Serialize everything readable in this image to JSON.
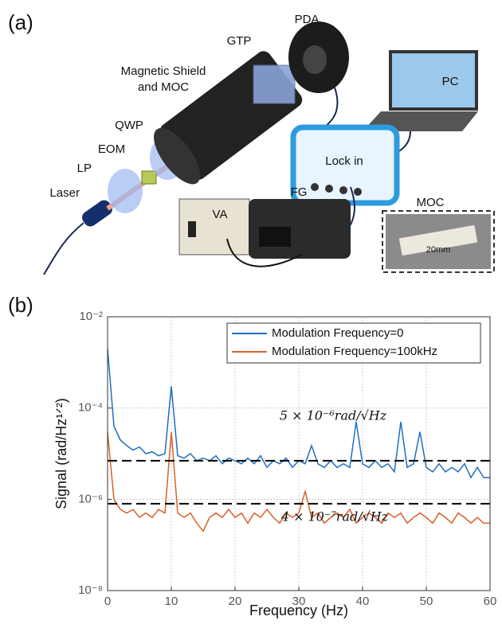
{
  "panels": {
    "a": "(a)",
    "b": "(b)"
  },
  "diagram": {
    "pda": "PDA",
    "gtp": "GTP",
    "shield": [
      "Magnetic Shield",
      "and MOC"
    ],
    "pc": "PC",
    "qwp": "QWP",
    "eom": "EOM",
    "lp": "LP",
    "laser": "Laser",
    "lockin": "Lock in",
    "moc": "MOC",
    "fg": "FG",
    "va": "VA",
    "scale": "20mm"
  },
  "chart_data": {
    "type": "line",
    "xlabel": "Frequency (Hz)",
    "ylabel": "Signal (rad/Hz¹ᐟ²)",
    "x": [
      0,
      1,
      2,
      3,
      4,
      5,
      6,
      7,
      8,
      9,
      10,
      11,
      12,
      13,
      14,
      15,
      16,
      17,
      18,
      19,
      20,
      21,
      22,
      23,
      24,
      25,
      26,
      27,
      28,
      29,
      30,
      31,
      32,
      33,
      34,
      35,
      36,
      37,
      38,
      39,
      40,
      41,
      42,
      43,
      44,
      45,
      46,
      47,
      48,
      49,
      50,
      51,
      52,
      53,
      54,
      55,
      56,
      57,
      58,
      59,
      60
    ],
    "series": [
      {
        "name": "Modulation Frequency=0",
        "color": "#1f6fbf",
        "values": [
          0.002,
          4e-05,
          2e-05,
          1.5e-05,
          1.2e-05,
          1.4e-05,
          1e-05,
          1.1e-05,
          9e-06,
          1e-05,
          0.0003,
          9e-06,
          8e-06,
          1e-05,
          7e-06,
          8e-06,
          7e-06,
          9e-06,
          6e-06,
          8e-06,
          7e-06,
          6e-06,
          8e-06,
          6e-06,
          9e-06,
          5e-06,
          7e-06,
          6e-06,
          8e-06,
          5e-06,
          7e-06,
          6e-06,
          1.5e-05,
          6e-06,
          5e-06,
          7e-06,
          5e-06,
          6e-06,
          5e-06,
          5e-05,
          6e-06,
          5e-06,
          7e-06,
          5e-06,
          6e-06,
          4e-06,
          5e-05,
          5e-06,
          6e-06,
          3e-05,
          5e-06,
          4e-06,
          6e-06,
          4e-06,
          5e-06,
          4e-06,
          6e-06,
          3e-06,
          5e-06,
          3e-06,
          3e-06
        ]
      },
      {
        "name": "Modulation Frequency=100kHz",
        "color": "#d9622b",
        "values": [
          3e-05,
          1e-06,
          6e-07,
          5e-07,
          6e-07,
          4e-07,
          5e-07,
          4e-07,
          6e-07,
          5e-07,
          3e-05,
          5e-07,
          4e-07,
          5e-07,
          3e-07,
          2e-07,
          4e-07,
          5e-07,
          4e-07,
          6e-07,
          4e-07,
          5e-07,
          3e-07,
          5e-07,
          4e-07,
          6e-07,
          4e-07,
          3e-07,
          5e-07,
          4e-07,
          5e-07,
          1.5e-06,
          4e-07,
          5e-07,
          3e-07,
          4e-07,
          5e-07,
          4e-07,
          6e-07,
          3e-07,
          4e-07,
          5e-07,
          4e-07,
          3e-07,
          5e-07,
          4e-07,
          5e-07,
          3e-07,
          4e-07,
          5e-07,
          4e-07,
          3e-07,
          5e-07,
          4e-07,
          3e-07,
          5e-07,
          4e-07,
          3e-07,
          4e-07,
          3e-07,
          3e-07
        ]
      }
    ],
    "reference_lines": [
      7e-06,
      8e-07
    ],
    "annotations": [
      "5 × 10⁻⁶rad/√Hz",
      "4 × 10⁻⁷rad/√Hz"
    ],
    "xlim": [
      0,
      60
    ],
    "xticks": [
      0,
      10,
      20,
      30,
      40,
      50,
      60
    ],
    "ylim": [
      1e-08,
      0.01
    ],
    "yticks": [
      {
        "value": 1e-08,
        "label": "10⁻⁸"
      },
      {
        "value": 1e-06,
        "label": "10⁻⁶"
      },
      {
        "value": 0.0001,
        "label": "10⁻⁴"
      },
      {
        "value": 0.01,
        "label": "10⁻²"
      }
    ],
    "log_y": true,
    "grid": true,
    "legend": "top-right"
  }
}
